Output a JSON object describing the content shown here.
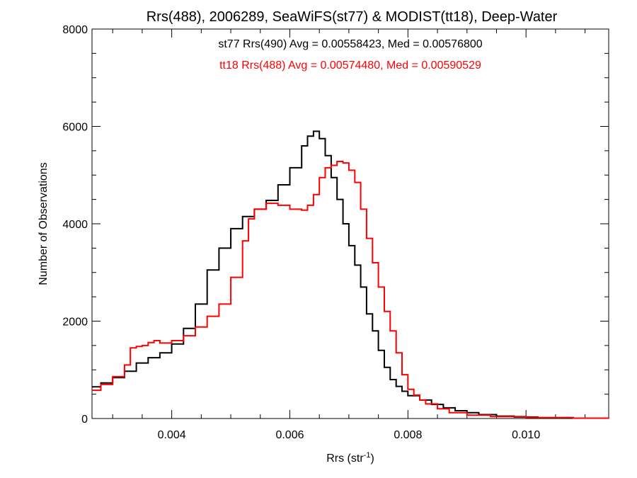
{
  "chart_data": {
    "type": "line",
    "step": true,
    "title": "Rrs(488), 2006289, SeaWiFS(st77) & MODIST(tt18), Deep-Water",
    "xlabel": "Rrs (str",
    "xlabel_sup": "-1",
    "xlabel_suffix": ")",
    "ylabel": "Number of Observations",
    "xlim": [
      0.00265,
      0.0114
    ],
    "ylim": [
      0,
      8000
    ],
    "x_ticks": [
      0.004,
      0.006,
      0.008,
      0.01
    ],
    "x_tick_labels": [
      "0.004",
      "0.006",
      "0.008",
      "0.010"
    ],
    "y_ticks": [
      0,
      2000,
      4000,
      6000,
      8000
    ],
    "y_tick_labels": [
      "0",
      "2000",
      "4000",
      "6000",
      "8000"
    ],
    "grid": false,
    "annotations": [
      {
        "text": "st77 Rrs(490) Avg = 0.00558423, Med = 0.00576800",
        "color": "#000000"
      },
      {
        "text": "tt18 Rrs(488) Avg = 0.00574480, Med = 0.00590529",
        "color": "#ff0000"
      }
    ],
    "series": [
      {
        "color": "#000000",
        "points": [
          [
            0.00265,
            650
          ],
          [
            0.0028,
            730
          ],
          [
            0.003,
            840
          ],
          [
            0.0032,
            970
          ],
          [
            0.0034,
            1140
          ],
          [
            0.0036,
            1250
          ],
          [
            0.0038,
            1350
          ],
          [
            0.004,
            1530
          ],
          [
            0.0042,
            1850
          ],
          [
            0.0044,
            2350
          ],
          [
            0.0046,
            3050
          ],
          [
            0.0048,
            3500
          ],
          [
            0.005,
            3900
          ],
          [
            0.0052,
            4150
          ],
          [
            0.0054,
            4300
          ],
          [
            0.0056,
            4480
          ],
          [
            0.0058,
            4800
          ],
          [
            0.006,
            5150
          ],
          [
            0.0062,
            5600
          ],
          [
            0.0063,
            5800
          ],
          [
            0.0064,
            5900
          ],
          [
            0.0065,
            5750
          ],
          [
            0.0066,
            5400
          ],
          [
            0.0067,
            4950
          ],
          [
            0.0068,
            4500
          ],
          [
            0.0069,
            4000
          ],
          [
            0.007,
            3550
          ],
          [
            0.0071,
            3150
          ],
          [
            0.0072,
            2700
          ],
          [
            0.0073,
            2150
          ],
          [
            0.0074,
            1800
          ],
          [
            0.0075,
            1400
          ],
          [
            0.0076,
            1050
          ],
          [
            0.0077,
            800
          ],
          [
            0.0078,
            660
          ],
          [
            0.0079,
            560
          ],
          [
            0.008,
            470
          ],
          [
            0.0082,
            380
          ],
          [
            0.0084,
            290
          ],
          [
            0.0086,
            220
          ],
          [
            0.0088,
            160
          ],
          [
            0.009,
            120
          ],
          [
            0.0092,
            80
          ],
          [
            0.0095,
            50
          ],
          [
            0.0098,
            30
          ],
          [
            0.0102,
            15
          ],
          [
            0.0108,
            8
          ],
          [
            0.0114,
            5
          ]
        ]
      },
      {
        "color": "#ff0000",
        "points": [
          [
            0.00265,
            580
          ],
          [
            0.0028,
            700
          ],
          [
            0.003,
            860
          ],
          [
            0.0032,
            1100
          ],
          [
            0.0033,
            1450
          ],
          [
            0.0034,
            1480
          ],
          [
            0.0035,
            1500
          ],
          [
            0.0036,
            1560
          ],
          [
            0.0037,
            1600
          ],
          [
            0.0038,
            1550
          ],
          [
            0.004,
            1600
          ],
          [
            0.0042,
            1700
          ],
          [
            0.0044,
            1880
          ],
          [
            0.0046,
            2100
          ],
          [
            0.0048,
            2350
          ],
          [
            0.005,
            2900
          ],
          [
            0.0052,
            3650
          ],
          [
            0.0053,
            4100
          ],
          [
            0.0054,
            4300
          ],
          [
            0.0056,
            4420
          ],
          [
            0.0058,
            4380
          ],
          [
            0.006,
            4300
          ],
          [
            0.0062,
            4280
          ],
          [
            0.0063,
            4380
          ],
          [
            0.0064,
            4600
          ],
          [
            0.0065,
            4950
          ],
          [
            0.0066,
            5150
          ],
          [
            0.0067,
            5200
          ],
          [
            0.0068,
            5280
          ],
          [
            0.0069,
            5250
          ],
          [
            0.007,
            5100
          ],
          [
            0.0071,
            4850
          ],
          [
            0.0072,
            4300
          ],
          [
            0.0073,
            3700
          ],
          [
            0.0074,
            3200
          ],
          [
            0.0075,
            2700
          ],
          [
            0.0076,
            2200
          ],
          [
            0.0077,
            1800
          ],
          [
            0.0078,
            1350
          ],
          [
            0.0079,
            900
          ],
          [
            0.008,
            600
          ],
          [
            0.0081,
            480
          ],
          [
            0.0082,
            380
          ],
          [
            0.0083,
            300
          ],
          [
            0.0085,
            200
          ],
          [
            0.0087,
            120
          ],
          [
            0.009,
            70
          ],
          [
            0.0094,
            40
          ],
          [
            0.01,
            20
          ],
          [
            0.0108,
            8
          ],
          [
            0.0114,
            5
          ]
        ]
      }
    ]
  }
}
